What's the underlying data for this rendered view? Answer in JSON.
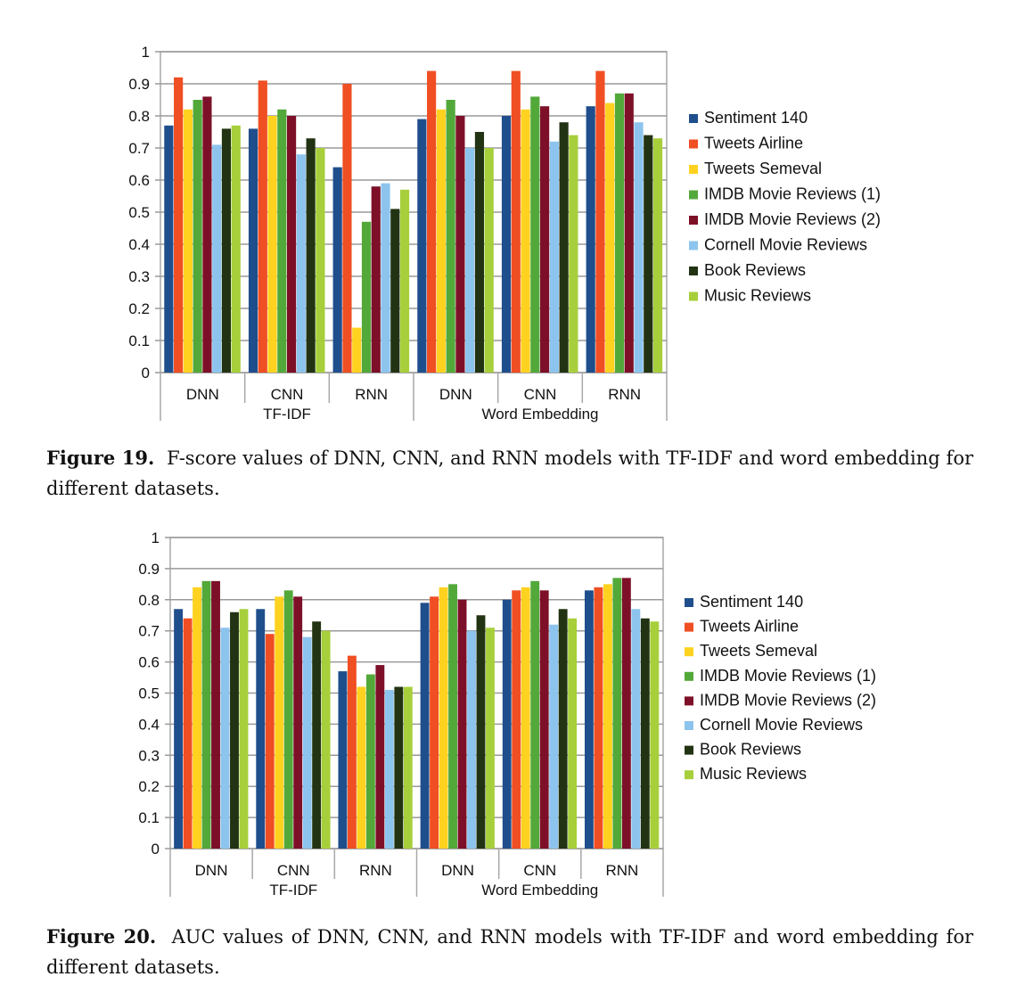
{
  "legend": [
    {
      "name": "Sentiment 140",
      "color": "#1f4e8c"
    },
    {
      "name": "Tweets Airline",
      "color": "#f04e23"
    },
    {
      "name": "Tweets Semeval",
      "color": "#ffd21f"
    },
    {
      "name": "IMDB Movie Reviews (1)",
      "color": "#53a83a"
    },
    {
      "name": "IMDB Movie Reviews (2)",
      "color": "#7d1028"
    },
    {
      "name": "Cornell Movie Reviews",
      "color": "#8cc4ee"
    },
    {
      "name": "Book Reviews",
      "color": "#223313"
    },
    {
      "name": "Music Reviews",
      "color": "#a7cf3b"
    }
  ],
  "chart_data": [
    {
      "type": "bar",
      "title": "",
      "categories": [
        "DNN",
        "CNN",
        "RNN",
        "DNN",
        "CNN",
        "RNN"
      ],
      "groups": [
        "TF-IDF",
        "Word Embedding"
      ],
      "ylim": [
        0,
        1
      ],
      "yticks": [
        "0",
        "0.1",
        "0.2",
        "0.3",
        "0.4",
        "0.5",
        "0.6",
        "0.7",
        "0.8",
        "0.9",
        "1"
      ],
      "grid": true,
      "series": [
        {
          "name": "Sentiment 140",
          "values": [
            0.77,
            0.76,
            0.64,
            0.79,
            0.8,
            0.83
          ]
        },
        {
          "name": "Tweets Airline",
          "values": [
            0.92,
            0.91,
            0.9,
            0.94,
            0.94,
            0.94
          ]
        },
        {
          "name": "Tweets Semeval",
          "values": [
            0.82,
            0.8,
            0.14,
            0.82,
            0.82,
            0.84
          ]
        },
        {
          "name": "IMDB Movie Reviews (1)",
          "values": [
            0.85,
            0.82,
            0.47,
            0.85,
            0.86,
            0.87
          ]
        },
        {
          "name": "IMDB Movie Reviews (2)",
          "values": [
            0.86,
            0.8,
            0.58,
            0.8,
            0.83,
            0.87
          ]
        },
        {
          "name": "Cornell Movie Reviews",
          "values": [
            0.71,
            0.68,
            0.59,
            0.7,
            0.72,
            0.78
          ]
        },
        {
          "name": "Book Reviews",
          "values": [
            0.76,
            0.73,
            0.51,
            0.75,
            0.78,
            0.74
          ]
        },
        {
          "name": "Music Reviews",
          "values": [
            0.77,
            0.7,
            0.57,
            0.7,
            0.74,
            0.73
          ]
        }
      ]
    },
    {
      "type": "bar",
      "title": "",
      "categories": [
        "DNN",
        "CNN",
        "RNN",
        "DNN",
        "CNN",
        "RNN"
      ],
      "groups": [
        "TF-IDF",
        "Word Embedding"
      ],
      "ylim": [
        0,
        1
      ],
      "yticks": [
        "0",
        "0.1",
        "0.2",
        "0.3",
        "0.4",
        "0.5",
        "0.6",
        "0.7",
        "0.8",
        "0.9",
        "1"
      ],
      "grid": true,
      "series": [
        {
          "name": "Sentiment 140",
          "values": [
            0.77,
            0.77,
            0.57,
            0.79,
            0.8,
            0.83
          ]
        },
        {
          "name": "Tweets Airline",
          "values": [
            0.74,
            0.69,
            0.62,
            0.81,
            0.83,
            0.84
          ]
        },
        {
          "name": "Tweets Semeval",
          "values": [
            0.84,
            0.81,
            0.52,
            0.84,
            0.84,
            0.85
          ]
        },
        {
          "name": "IMDB Movie Reviews (1)",
          "values": [
            0.86,
            0.83,
            0.56,
            0.85,
            0.86,
            0.87
          ]
        },
        {
          "name": "IMDB Movie Reviews (2)",
          "values": [
            0.86,
            0.81,
            0.59,
            0.8,
            0.83,
            0.87
          ]
        },
        {
          "name": "Cornell Movie Reviews",
          "values": [
            0.71,
            0.68,
            0.51,
            0.7,
            0.72,
            0.77
          ]
        },
        {
          "name": "Book Reviews",
          "values": [
            0.76,
            0.73,
            0.52,
            0.75,
            0.77,
            0.74
          ]
        },
        {
          "name": "Music Reviews",
          "values": [
            0.77,
            0.7,
            0.52,
            0.71,
            0.74,
            0.73
          ]
        }
      ]
    }
  ],
  "captions": [
    {
      "label": "Figure 19.",
      "text": "F-score values of DNN, CNN, and RNN models with TF-IDF and word embedding for different datasets."
    },
    {
      "label": "Figure 20.",
      "text": "AUC values of DNN, CNN, and RNN models with TF-IDF and word embedding for different datasets."
    }
  ]
}
